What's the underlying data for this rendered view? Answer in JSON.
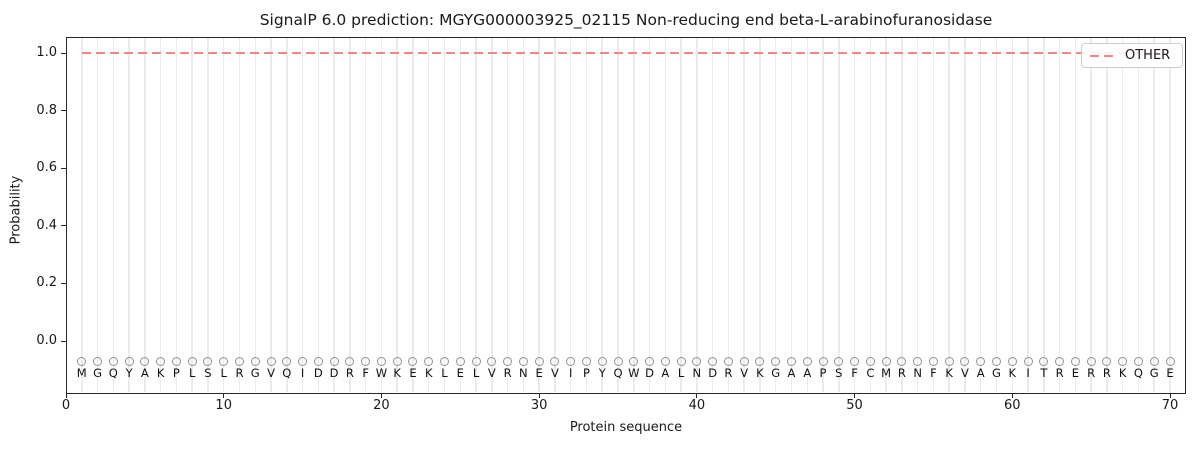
{
  "chart_data": {
    "type": "line",
    "title": "SignalP 6.0 prediction: MGYG000003925_02115 Non-reducing end beta-L-arabinofuranosidase",
    "xlabel": "Protein sequence",
    "ylabel": "Probability",
    "xlim": [
      0,
      71
    ],
    "ylim": [
      -0.18,
      1.056
    ],
    "x_ticks": [
      "0",
      "10",
      "20",
      "30",
      "40",
      "50",
      "60",
      "70"
    ],
    "y_ticks": [
      "0.0",
      "0.2",
      "0.4",
      "0.6",
      "0.8",
      "1.0"
    ],
    "grid": {
      "vertical_per_residue": true,
      "horizontal": false,
      "color": "#ebebeb"
    },
    "legend": {
      "position": "upper-right",
      "entries": [
        {
          "label": "OTHER",
          "color": "#f28585",
          "linestyle": "dashed"
        }
      ]
    },
    "series": [
      {
        "name": "OTHER",
        "linestyle": "dashed",
        "color": "#f28585",
        "x_start": 1,
        "x_end": 70,
        "y_constant": 1.0
      }
    ],
    "sequence": "MGQYAKPLSLRGVQIDDRFWKEKLELVRNEVIPYQWDALNDRVKGAAPSFCMRNFKVAGKITRERRKQGE",
    "residue_markers": {
      "symbol": "open-circle",
      "color": "#919191",
      "y": -0.065
    }
  },
  "colors": {
    "background": "#ffffff",
    "axis": "#262626",
    "text": "#1a1a1a",
    "grid": "#ebebeb",
    "other_line": "#f28585",
    "marker": "#919191",
    "legend_border": "#cccccc"
  }
}
